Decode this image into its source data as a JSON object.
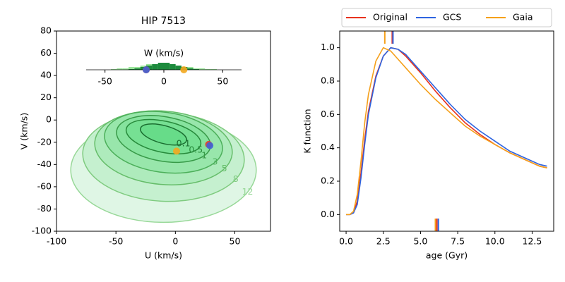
{
  "chart_data": [
    {
      "type": "contour",
      "title": "HIP 7513",
      "xlabel": "U (km/s)",
      "ylabel": "V (km/s)",
      "xlim": [
        -100,
        80
      ],
      "ylim": [
        -100,
        80
      ],
      "xticks": [
        -100,
        -50,
        0,
        50
      ],
      "yticks": [
        -100,
        -80,
        -60,
        -40,
        -20,
        0,
        20,
        40,
        60,
        80
      ],
      "contours": [
        {
          "level": 12,
          "center": [
            -10,
            -45
          ],
          "axes": [
            78,
            47
          ],
          "angle": 0,
          "fill": "#dcf5e2",
          "color": "#98d898"
        },
        {
          "level": 8,
          "center": [
            -10,
            -33
          ],
          "axes": [
            68,
            40
          ],
          "angle": -3,
          "fill": "#c2efcc",
          "color": "#7fcb7f"
        },
        {
          "level": 5,
          "center": [
            -10,
            -25
          ],
          "axes": [
            58,
            33
          ],
          "angle": -5,
          "fill": "#abeab9",
          "color": "#66bd6a"
        },
        {
          "level": 3,
          "center": [
            -10,
            -20
          ],
          "axes": [
            50,
            27
          ],
          "angle": -8,
          "fill": "#96e6a8",
          "color": "#4caf5a"
        },
        {
          "level": 1,
          "center": [
            -10,
            -17
          ],
          "axes": [
            40,
            20
          ],
          "angle": -10,
          "fill": "#84e29c",
          "color": "#389a48"
        },
        {
          "level": 0.5,
          "center": [
            -10,
            -15
          ],
          "axes": [
            32,
            14
          ],
          "angle": -12,
          "fill": "#74df91",
          "color": "#278a3b"
        },
        {
          "level": 0.1,
          "center": [
            -10,
            -13
          ],
          "axes": [
            20,
            8
          ],
          "angle": -15,
          "fill": "#66dc88",
          "color": "#1a6e30"
        }
      ],
      "points": {
        "U": [
          28,
          29,
          1
        ],
        "V": [
          -22,
          -23,
          -28
        ],
        "colors": [
          "#e8382a",
          "#3e63d6",
          "#f3a91f"
        ]
      },
      "inset": {
        "title": "W (km/s)",
        "xlim": [
          -66,
          66
        ],
        "xticks": [
          -50,
          0,
          50
        ],
        "ylim": [
          0,
          5
        ],
        "bins": [
          -45,
          -40,
          -35,
          -30,
          -25,
          -20,
          -15,
          -10,
          -5,
          0,
          5,
          10,
          15,
          20,
          25,
          30,
          35,
          40,
          45
        ],
        "series": [
          {
            "color": "#9be49b",
            "values": [
              0.5,
              1,
              1,
              2,
              2,
              3,
              4,
              4,
              4,
              4,
              3,
              3,
              2,
              2,
              1,
              1,
              0.5,
              0.5
            ]
          },
          {
            "color": "#1c8a3c",
            "values": [
              0,
              0,
              0,
              0.5,
              1,
              2,
              3,
              4,
              5,
              5,
              4,
              3,
              2,
              1,
              0.5,
              0,
              0,
              0
            ]
          }
        ],
        "points": {
          "W": [
            -15,
            -15,
            17
          ],
          "colors": [
            "#e8382a",
            "#3e63d6",
            "#f3a91f"
          ]
        }
      }
    },
    {
      "type": "line",
      "xlabel": "age (Gyr)",
      "ylabel": "K function",
      "xlim": [
        -0.43,
        13.95
      ],
      "ylim": [
        -0.1,
        1.1
      ],
      "xticks": [
        {
          "value": 0,
          "label": "0.0"
        },
        {
          "value": 2.5,
          "label": "2.5"
        },
        {
          "value": 5,
          "label": "5.0"
        },
        {
          "value": 7.5,
          "label": "7.5"
        },
        {
          "value": 10,
          "label": "10.0"
        },
        {
          "value": 12.5,
          "label": "12.5"
        }
      ],
      "yticks": [
        {
          "value": 0,
          "label": "0.0"
        },
        {
          "value": 0.2,
          "label": "0.2"
        },
        {
          "value": 0.4,
          "label": "0.4"
        },
        {
          "value": 0.6,
          "label": "0.6"
        },
        {
          "value": 0.8,
          "label": "0.8"
        },
        {
          "value": 1,
          "label": "1.0"
        }
      ],
      "legend": "upper center",
      "x": [
        0,
        0.25,
        0.5,
        0.75,
        1,
        1.25,
        1.5,
        2,
        2.5,
        3,
        3.5,
        4,
        5,
        6,
        7,
        8,
        9,
        10,
        11,
        12,
        13,
        13.5
      ],
      "series": [
        {
          "name": "Original",
          "color": "#e8321e",
          "mode": 3.1,
          "median": 6.1,
          "values": [
            0,
            0,
            0.01,
            0.08,
            0.25,
            0.45,
            0.62,
            0.83,
            0.95,
            1.0,
            0.99,
            0.95,
            0.85,
            0.74,
            0.64,
            0.55,
            0.48,
            0.42,
            0.37,
            0.33,
            0.29,
            0.28
          ]
        },
        {
          "name": "GCS",
          "color": "#2e64e0",
          "mode": 3.15,
          "median": 6.2,
          "values": [
            0,
            0,
            0.01,
            0.06,
            0.22,
            0.42,
            0.6,
            0.82,
            0.95,
            1.0,
            0.99,
            0.96,
            0.86,
            0.76,
            0.66,
            0.57,
            0.5,
            0.44,
            0.38,
            0.34,
            0.3,
            0.29
          ]
        },
        {
          "name": "Gaia",
          "color": "#f5a01a",
          "mode": 2.6,
          "median": 6.0,
          "values": [
            0,
            0,
            0.02,
            0.12,
            0.32,
            0.55,
            0.72,
            0.92,
            1.0,
            0.98,
            0.93,
            0.88,
            0.78,
            0.69,
            0.61,
            0.53,
            0.47,
            0.42,
            0.37,
            0.33,
            0.29,
            0.28
          ]
        }
      ]
    }
  ]
}
